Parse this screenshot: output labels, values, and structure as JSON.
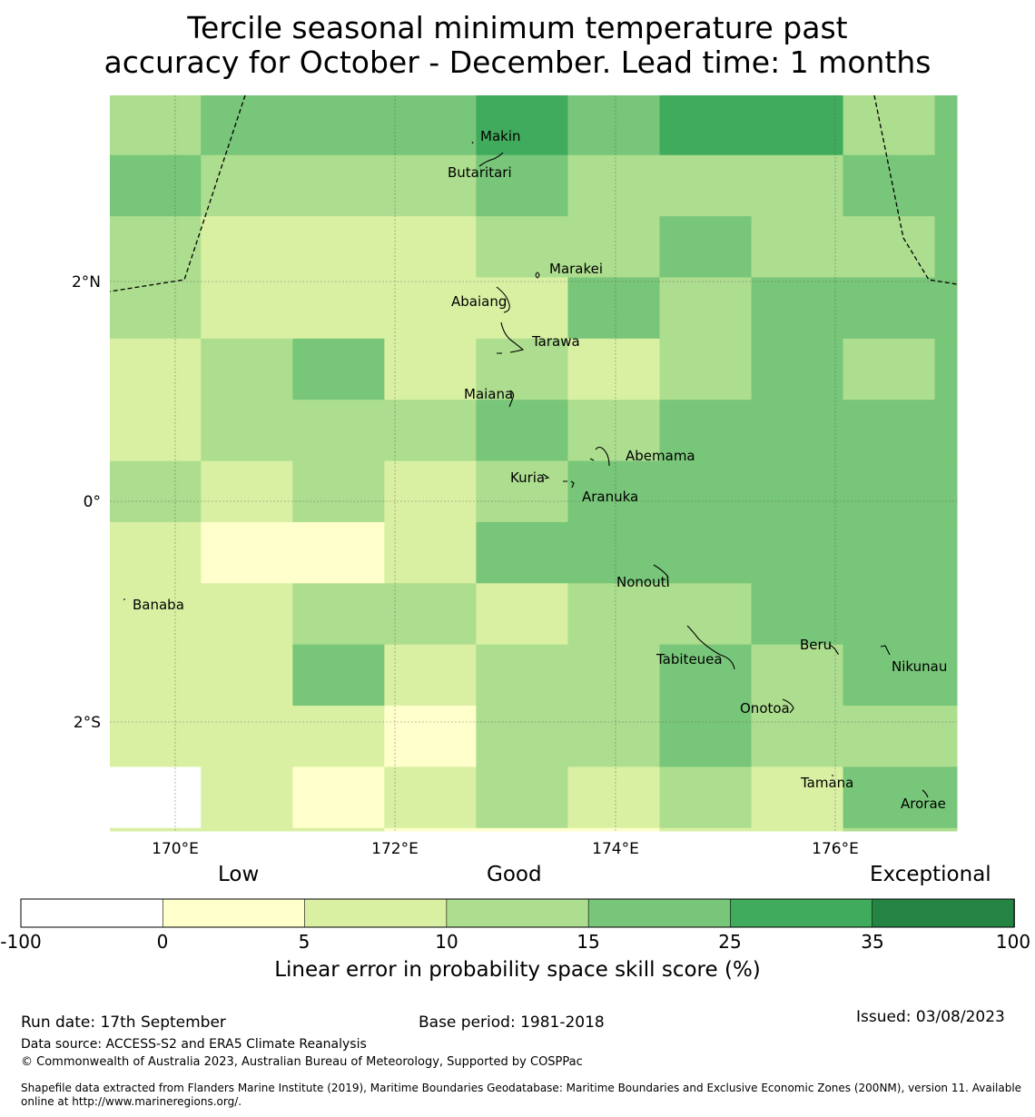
{
  "title": {
    "line1": "Tercile seasonal minimum temperature past",
    "line2": "accuracy for October - December. Lead time: 1 months"
  },
  "map": {
    "grid_lon_start": 169.4,
    "grid_lon_step": 0.8333,
    "grid_lat_start": 3.7,
    "grid_lat_step": 0.5556,
    "grid_rows": [
      [
        3,
        4,
        4,
        4,
        5,
        4,
        5,
        5,
        3,
        4
      ],
      [
        4,
        3,
        3,
        3,
        4,
        3,
        3,
        3,
        4,
        4
      ],
      [
        3,
        2,
        2,
        2,
        3,
        3,
        4,
        3,
        3,
        4
      ],
      [
        3,
        2,
        2,
        2,
        2,
        4,
        3,
        4,
        4,
        4
      ],
      [
        2,
        3,
        4,
        2,
        3,
        2,
        3,
        4,
        3,
        4
      ],
      [
        2,
        3,
        3,
        3,
        4,
        3,
        4,
        4,
        4,
        4
      ],
      [
        3,
        2,
        3,
        2,
        3,
        4,
        4,
        4,
        4,
        4
      ],
      [
        2,
        1,
        1,
        2,
        4,
        4,
        4,
        4,
        4,
        4
      ],
      [
        2,
        2,
        3,
        3,
        2,
        3,
        3,
        4,
        4,
        4
      ],
      [
        2,
        2,
        4,
        2,
        3,
        3,
        4,
        3,
        4,
        4
      ],
      [
        2,
        2,
        2,
        1,
        3,
        3,
        4,
        3,
        3,
        3
      ],
      [
        0,
        2,
        1,
        2,
        3,
        2,
        3,
        2,
        4,
        4
      ],
      [
        2,
        2,
        2,
        1,
        1,
        1,
        2,
        2,
        3,
        3
      ]
    ],
    "lon_ticks": [
      "170°E",
      "172°E",
      "174°E",
      "176°E"
    ],
    "lat_ticks": [
      "2°N",
      "0°",
      "2°S"
    ],
    "islands": [
      "Makin",
      "Butaritari",
      "Marakei",
      "Abaiang",
      "Tarawa",
      "Maiana",
      "Abemama",
      "Kuria",
      "Aranuka",
      "Banaba",
      "Nonouti",
      "Beru",
      "Tabiteuea",
      "Nikunau",
      "Onotoa",
      "Tamana",
      "Arorae"
    ]
  },
  "colorbar": {
    "colors": [
      "#ffffff",
      "#ffffcc",
      "#d9f0a3",
      "#addd8e",
      "#78c679",
      "#41ab5d",
      "#238443"
    ],
    "ticks": [
      "-100",
      "0",
      "5",
      "10",
      "15",
      "25",
      "35",
      "100"
    ],
    "categories": {
      "low": "Low",
      "good": "Good",
      "exceptional": "Exceptional"
    },
    "label": "Linear error in probability space skill score (%)"
  },
  "footer": {
    "run_date": "Run date: 17th September",
    "base_period": "Base period: 1981-2018",
    "issued": "Issued: 03/08/2023",
    "data_source": "Data source: ACCESS-S2 and ERA5 Climate Reanalysis",
    "copyright": "© Commonwealth of Australia 2023, Australian Bureau of Meteorology, Supported by COSPPac",
    "shapefile_line1": "Shapefile data extracted from Flanders Marine Institute (2019), Maritime Boundaries Geodatabase: Maritime Boundaries and Exclusive Economic Zones (200NM), version 11. Available",
    "shapefile_line2": "online at http://www.marineregions.org/."
  }
}
